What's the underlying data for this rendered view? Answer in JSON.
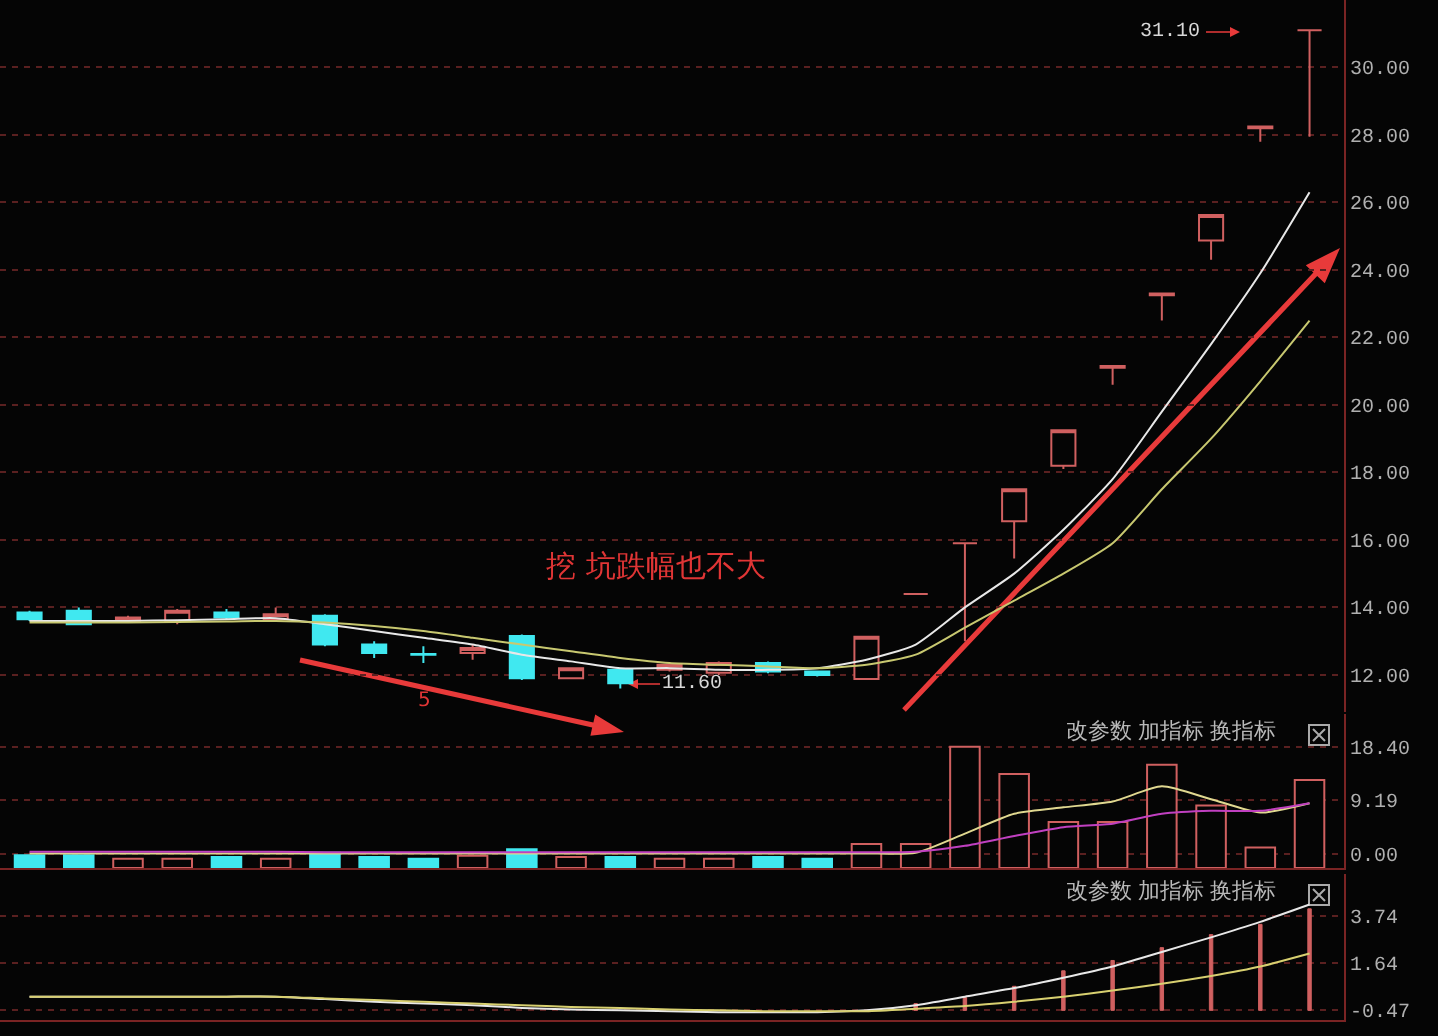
{
  "chart_data": [
    {
      "type": "candlestick",
      "categories": [
        null,
        null,
        null,
        null,
        null,
        null,
        null,
        null,
        null,
        null,
        null,
        null,
        null,
        null,
        null,
        null,
        null,
        null,
        null,
        null,
        null,
        null,
        null,
        null,
        null,
        null,
        null
      ],
      "ohlc": [
        [
          13.85,
          13.9,
          13.6,
          13.65
        ],
        [
          13.9,
          14.0,
          13.5,
          13.5
        ],
        [
          13.6,
          13.75,
          13.55,
          13.7
        ],
        [
          13.6,
          13.95,
          13.5,
          13.9
        ],
        [
          13.85,
          13.95,
          13.65,
          13.7
        ],
        [
          13.65,
          14.0,
          13.6,
          13.8
        ],
        [
          13.75,
          13.8,
          12.85,
          12.9
        ],
        [
          12.9,
          13.0,
          12.5,
          12.65
        ],
        [
          12.62,
          12.85,
          12.35,
          12.6
        ],
        [
          12.65,
          12.9,
          12.45,
          12.8
        ],
        [
          13.15,
          13.2,
          11.85,
          11.9
        ],
        [
          11.9,
          12.2,
          11.9,
          12.2
        ],
        [
          12.15,
          12.2,
          11.6,
          11.75
        ],
        [
          12.15,
          12.35,
          12.1,
          12.3
        ],
        [
          12.06,
          12.4,
          12.0,
          12.35
        ],
        [
          12.35,
          12.4,
          12.05,
          12.1
        ],
        [
          12.1,
          12.1,
          11.95,
          12.0
        ],
        [
          11.88,
          13.13,
          11.88,
          13.13
        ],
        [
          14.4,
          14.4,
          14.4,
          14.4
        ],
        [
          15.9,
          15.9,
          13.0,
          15.9
        ],
        [
          16.55,
          17.5,
          15.45,
          17.5
        ],
        [
          18.2,
          19.25,
          18.1,
          19.25
        ],
        [
          21.1,
          21.15,
          20.6,
          21.15
        ],
        [
          23.25,
          23.3,
          22.5,
          23.3
        ],
        [
          24.87,
          25.63,
          24.3,
          25.63
        ],
        [
          28.2,
          28.25,
          27.8,
          28.25
        ],
        [
          31.1,
          31.1,
          27.95,
          31.1
        ]
      ],
      "colors": [
        "#40e8f0",
        "#40e8f0",
        "#d06060",
        "#d06060",
        "#40e8f0",
        "#d06060",
        "#40e8f0",
        "#40e8f0",
        "#40e8f0",
        "#d06060",
        "#40e8f0",
        "#d06060",
        "#40e8f0",
        "#d06060",
        "#d06060",
        "#40e8f0",
        "#40e8f0",
        "#d06060",
        "#d06060",
        "#d06060",
        "#d06060",
        "#d06060",
        "#d06060",
        "#d06060",
        "#d06060",
        "#d06060",
        "#d06060"
      ],
      "series": [
        {
          "type": "line",
          "color": "#e8e8e8",
          "values": [
            13.6,
            13.6,
            13.6,
            13.62,
            13.65,
            13.68,
            13.5,
            13.3,
            13.1,
            12.9,
            12.6,
            12.4,
            12.2,
            12.2,
            12.15,
            12.15,
            12.2,
            12.45,
            12.9,
            14.0,
            15.0,
            16.3,
            17.8,
            19.8,
            21.8,
            23.9,
            26.3
          ]
        },
        {
          "type": "line",
          "color": "#c8c870",
          "values": [
            13.55,
            13.55,
            13.55,
            13.57,
            13.58,
            13.6,
            13.55,
            13.45,
            13.3,
            13.1,
            12.9,
            12.7,
            12.5,
            12.35,
            12.3,
            12.25,
            12.2,
            12.3,
            12.6,
            13.4,
            14.2,
            15.0,
            15.9,
            17.5,
            19.0,
            20.7,
            22.5
          ]
        }
      ],
      "ylim": [
        10.9,
        32
      ],
      "yticks": [
        {
          "value": 12,
          "label": "12.00"
        },
        {
          "value": 14,
          "label": "14.00"
        },
        {
          "value": 16,
          "label": "16.00"
        },
        {
          "value": 18,
          "label": "18.00"
        },
        {
          "value": 20,
          "label": "20.00"
        },
        {
          "value": 22,
          "label": "22.00"
        },
        {
          "value": 24,
          "label": "24.00"
        },
        {
          "value": 26,
          "label": "26.00"
        },
        {
          "value": 28,
          "label": "28.00"
        },
        {
          "value": 30,
          "label": "30.00"
        }
      ],
      "grid": "y",
      "tick_labels": "y",
      "annotations": [
        "挖 坑跌幅也不大",
        "11.60",
        "31.10",
        "5"
      ]
    },
    {
      "type": "bar",
      "categories": [
        null,
        null,
        null,
        null,
        null,
        null,
        null,
        null,
        null,
        null,
        null,
        null,
        null,
        null,
        null,
        null,
        null,
        null,
        null,
        null,
        null,
        null,
        null,
        null,
        null,
        null,
        null
      ],
      "series": [
        {
          "type": "bar",
          "colors": [
            "#40e8f0",
            "#40e8f0",
            "#d06060",
            "#d06060",
            "#40e8f0",
            "#d06060",
            "#40e8f0",
            "#40e8f0",
            "#40e8f0",
            "#d06060",
            "#40e8f0",
            "#d06060",
            "#40e8f0",
            "#d06060",
            "#d06060",
            "#40e8f0",
            "#40e8f0",
            "#d06060",
            "#d06060",
            "#d06060",
            "#d06060",
            "#d06060",
            "#d06060",
            "#d06060",
            "#d06060",
            "#d06060",
            "#d06060"
          ],
          "base": [
            -2.4,
            -2.4,
            -2.4,
            -2.4,
            -2.4,
            -2.4,
            -2.4,
            -2.4,
            -2.4,
            -2.4,
            -2.4,
            -2.4,
            -2.4,
            -2.4,
            -2.4,
            -2.4,
            -2.4,
            -2.4,
            -2.4,
            -2.4,
            -2.4,
            -2.4,
            -2.4,
            -2.4,
            -2.4,
            -2.4,
            -2.4
          ],
          "values": [
            2.2,
            2.2,
            1.6,
            1.6,
            1.9,
            1.6,
            2.6,
            1.9,
            1.6,
            2.1,
            3.2,
            1.9,
            1.9,
            1.6,
            1.6,
            1.9,
            1.6,
            4.1,
            4.1,
            20.8,
            16.1,
            7.9,
            7.9,
            17.7,
            10.7,
            3.5,
            15.1
          ]
        },
        {
          "type": "line",
          "color": "#e0d890",
          "values": [
            0.1,
            0.1,
            0.1,
            0.1,
            0.1,
            0.1,
            0.1,
            0.1,
            0.1,
            0.1,
            0.1,
            0.1,
            0.1,
            0.1,
            0.1,
            0.1,
            0.1,
            0.1,
            0.2,
            3.5,
            6.9,
            8.0,
            9.0,
            11.6,
            9.4,
            7.1,
            8.7
          ]
        },
        {
          "type": "line",
          "color": "#c040c0",
          "values": [
            0.4,
            0.4,
            0.4,
            0.4,
            0.4,
            0.4,
            0.3,
            0.3,
            0.3,
            0.3,
            0.3,
            0.3,
            0.3,
            0.3,
            0.3,
            0.3,
            0.3,
            0.3,
            0.4,
            1.4,
            3.1,
            4.6,
            5.2,
            6.9,
            7.4,
            7.4,
            8.7
          ]
        }
      ],
      "ylim": [
        -2.4,
        24
      ],
      "yticks": [
        {
          "value": 0,
          "label": "0.00"
        },
        {
          "value": 9.19,
          "label": "9.19"
        },
        {
          "value": 18.4,
          "label": "18.40"
        }
      ],
      "grid": "y",
      "tick_labels": "y",
      "annotations": [
        "改参数",
        "加指标",
        "换指标"
      ]
    },
    {
      "type": "line",
      "categories": [
        null,
        null,
        null,
        null,
        null,
        null,
        null,
        null,
        null,
        null,
        null,
        null,
        null,
        null,
        null,
        null,
        null,
        null,
        null,
        null,
        null,
        null,
        null,
        null,
        null,
        null,
        null
      ],
      "series": [
        {
          "type": "bar",
          "colors": [
            "#d06060",
            "#d06060",
            "#d06060",
            "#d06060",
            "#d06060",
            "#d06060",
            "#d06060",
            "#d06060",
            "#d06060",
            "#d06060",
            "#d06060",
            "#d06060",
            "#d06060",
            "#d06060",
            "#d06060",
            "#d06060",
            "#d06060",
            "#d06060",
            "#d06060",
            "#d06060",
            "#d06060",
            "#d06060",
            "#d06060",
            "#d06060",
            "#d06060",
            "#d06060",
            "#d06060"
          ],
          "base": [
            null,
            null,
            null,
            null,
            null,
            null,
            null,
            null,
            null,
            null,
            null,
            null,
            null,
            null,
            null,
            null,
            null,
            null,
            -0.47,
            -0.47,
            -0.47,
            -0.47,
            -0.47,
            -0.47,
            -0.47,
            -0.47,
            -0.47
          ],
          "values": [
            null,
            null,
            null,
            null,
            null,
            null,
            null,
            null,
            null,
            null,
            null,
            null,
            null,
            null,
            null,
            null,
            null,
            null,
            0.3,
            0.57,
            1.07,
            1.76,
            2.22,
            2.79,
            3.37,
            3.83,
            4.52
          ]
        },
        {
          "type": "line",
          "color": "#e8e8e8",
          "values": [
            0.14,
            0.14,
            0.14,
            0.14,
            0.14,
            0.14,
            0.03,
            -0.09,
            -0.17,
            -0.24,
            -0.36,
            -0.43,
            -0.47,
            -0.51,
            -0.55,
            -0.55,
            -0.55,
            -0.47,
            -0.24,
            0.14,
            0.52,
            0.98,
            1.48,
            2.13,
            2.78,
            3.47,
            4.24
          ]
        },
        {
          "type": "line",
          "color": "#d8d070",
          "values": [
            0.14,
            0.14,
            0.14,
            0.14,
            0.14,
            0.14,
            0.06,
            -0.01,
            -0.09,
            -0.17,
            -0.24,
            -0.32,
            -0.36,
            -0.43,
            -0.47,
            -0.51,
            -0.51,
            -0.51,
            -0.4,
            -0.28,
            -0.09,
            0.14,
            0.41,
            0.71,
            1.06,
            1.48,
            2.06
          ]
        }
      ],
      "ylim": [
        -0.9,
        5.6
      ],
      "yticks": [
        {
          "value": -0.47,
          "label": "-0.47"
        },
        {
          "value": 1.64,
          "label": "1.64"
        },
        {
          "value": 3.74,
          "label": "3.74"
        }
      ],
      "grid": "y",
      "tick_labels": "y",
      "annotations": [
        "改参数",
        "加指标",
        "换指标"
      ]
    }
  ]
}
